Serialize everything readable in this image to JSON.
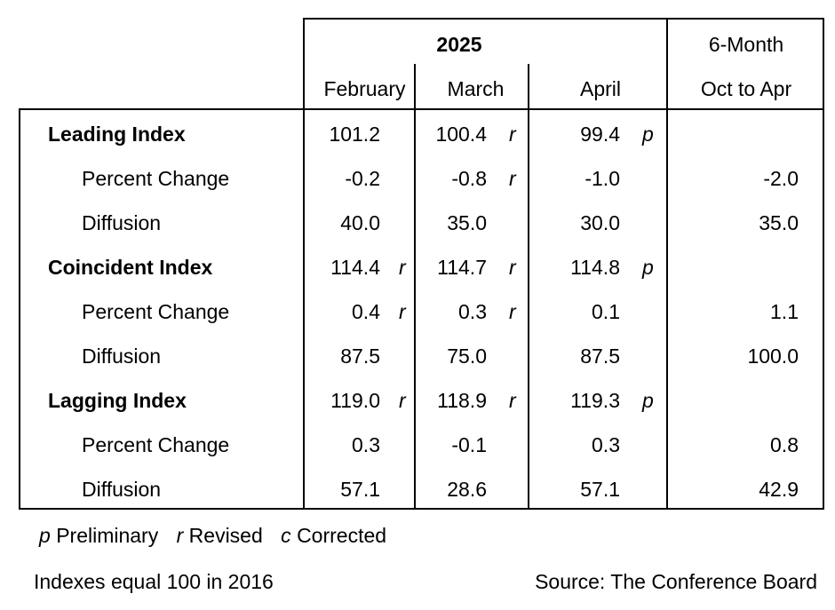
{
  "header": {
    "year": "2025",
    "summary_title": "6-Month",
    "months": [
      "February",
      "March",
      "April"
    ],
    "summary_period": "Oct to Apr"
  },
  "rows": [
    {
      "label": "Leading Index",
      "bold": true,
      "feb": "101.2",
      "feb_flag": "",
      "mar": "100.4",
      "mar_flag": "r",
      "apr": "99.4",
      "apr_flag": "p",
      "six": ""
    },
    {
      "label": "Percent Change",
      "bold": false,
      "feb": "-0.2",
      "feb_flag": "",
      "mar": "-0.8",
      "mar_flag": "r",
      "apr": "-1.0",
      "apr_flag": "",
      "six": "-2.0"
    },
    {
      "label": "Diffusion",
      "bold": false,
      "feb": "40.0",
      "feb_flag": "",
      "mar": "35.0",
      "mar_flag": "",
      "apr": "30.0",
      "apr_flag": "",
      "six": "35.0"
    },
    {
      "label": "Coincident Index",
      "bold": true,
      "feb": "114.4",
      "feb_flag": "r",
      "mar": "114.7",
      "mar_flag": "r",
      "apr": "114.8",
      "apr_flag": "p",
      "six": ""
    },
    {
      "label": "Percent Change",
      "bold": false,
      "feb": "0.4",
      "feb_flag": "r",
      "mar": "0.3",
      "mar_flag": "r",
      "apr": "0.1",
      "apr_flag": "",
      "six": "1.1"
    },
    {
      "label": "Diffusion",
      "bold": false,
      "feb": "87.5",
      "feb_flag": "",
      "mar": "75.0",
      "mar_flag": "",
      "apr": "87.5",
      "apr_flag": "",
      "six": "100.0"
    },
    {
      "label": "Lagging Index",
      "bold": true,
      "feb": "119.0",
      "feb_flag": "r",
      "mar": "118.9",
      "mar_flag": "r",
      "apr": "119.3",
      "apr_flag": "p",
      "six": ""
    },
    {
      "label": "Percent Change",
      "bold": false,
      "feb": "0.3",
      "feb_flag": "",
      "mar": "-0.1",
      "mar_flag": "",
      "apr": "0.3",
      "apr_flag": "",
      "six": "0.8"
    },
    {
      "label": "Diffusion",
      "bold": false,
      "feb": "57.1",
      "feb_flag": "",
      "mar": "28.6",
      "mar_flag": "",
      "apr": "57.1",
      "apr_flag": "",
      "six": "42.9"
    }
  ],
  "legend": {
    "p_symbol": "p",
    "p_text": "Preliminary",
    "r_symbol": "r",
    "r_text": "Revised",
    "c_symbol": "c",
    "c_text": "Corrected"
  },
  "footer": {
    "base_note": "Indexes equal 100 in 2016",
    "source": "Source: The Conference Board"
  }
}
